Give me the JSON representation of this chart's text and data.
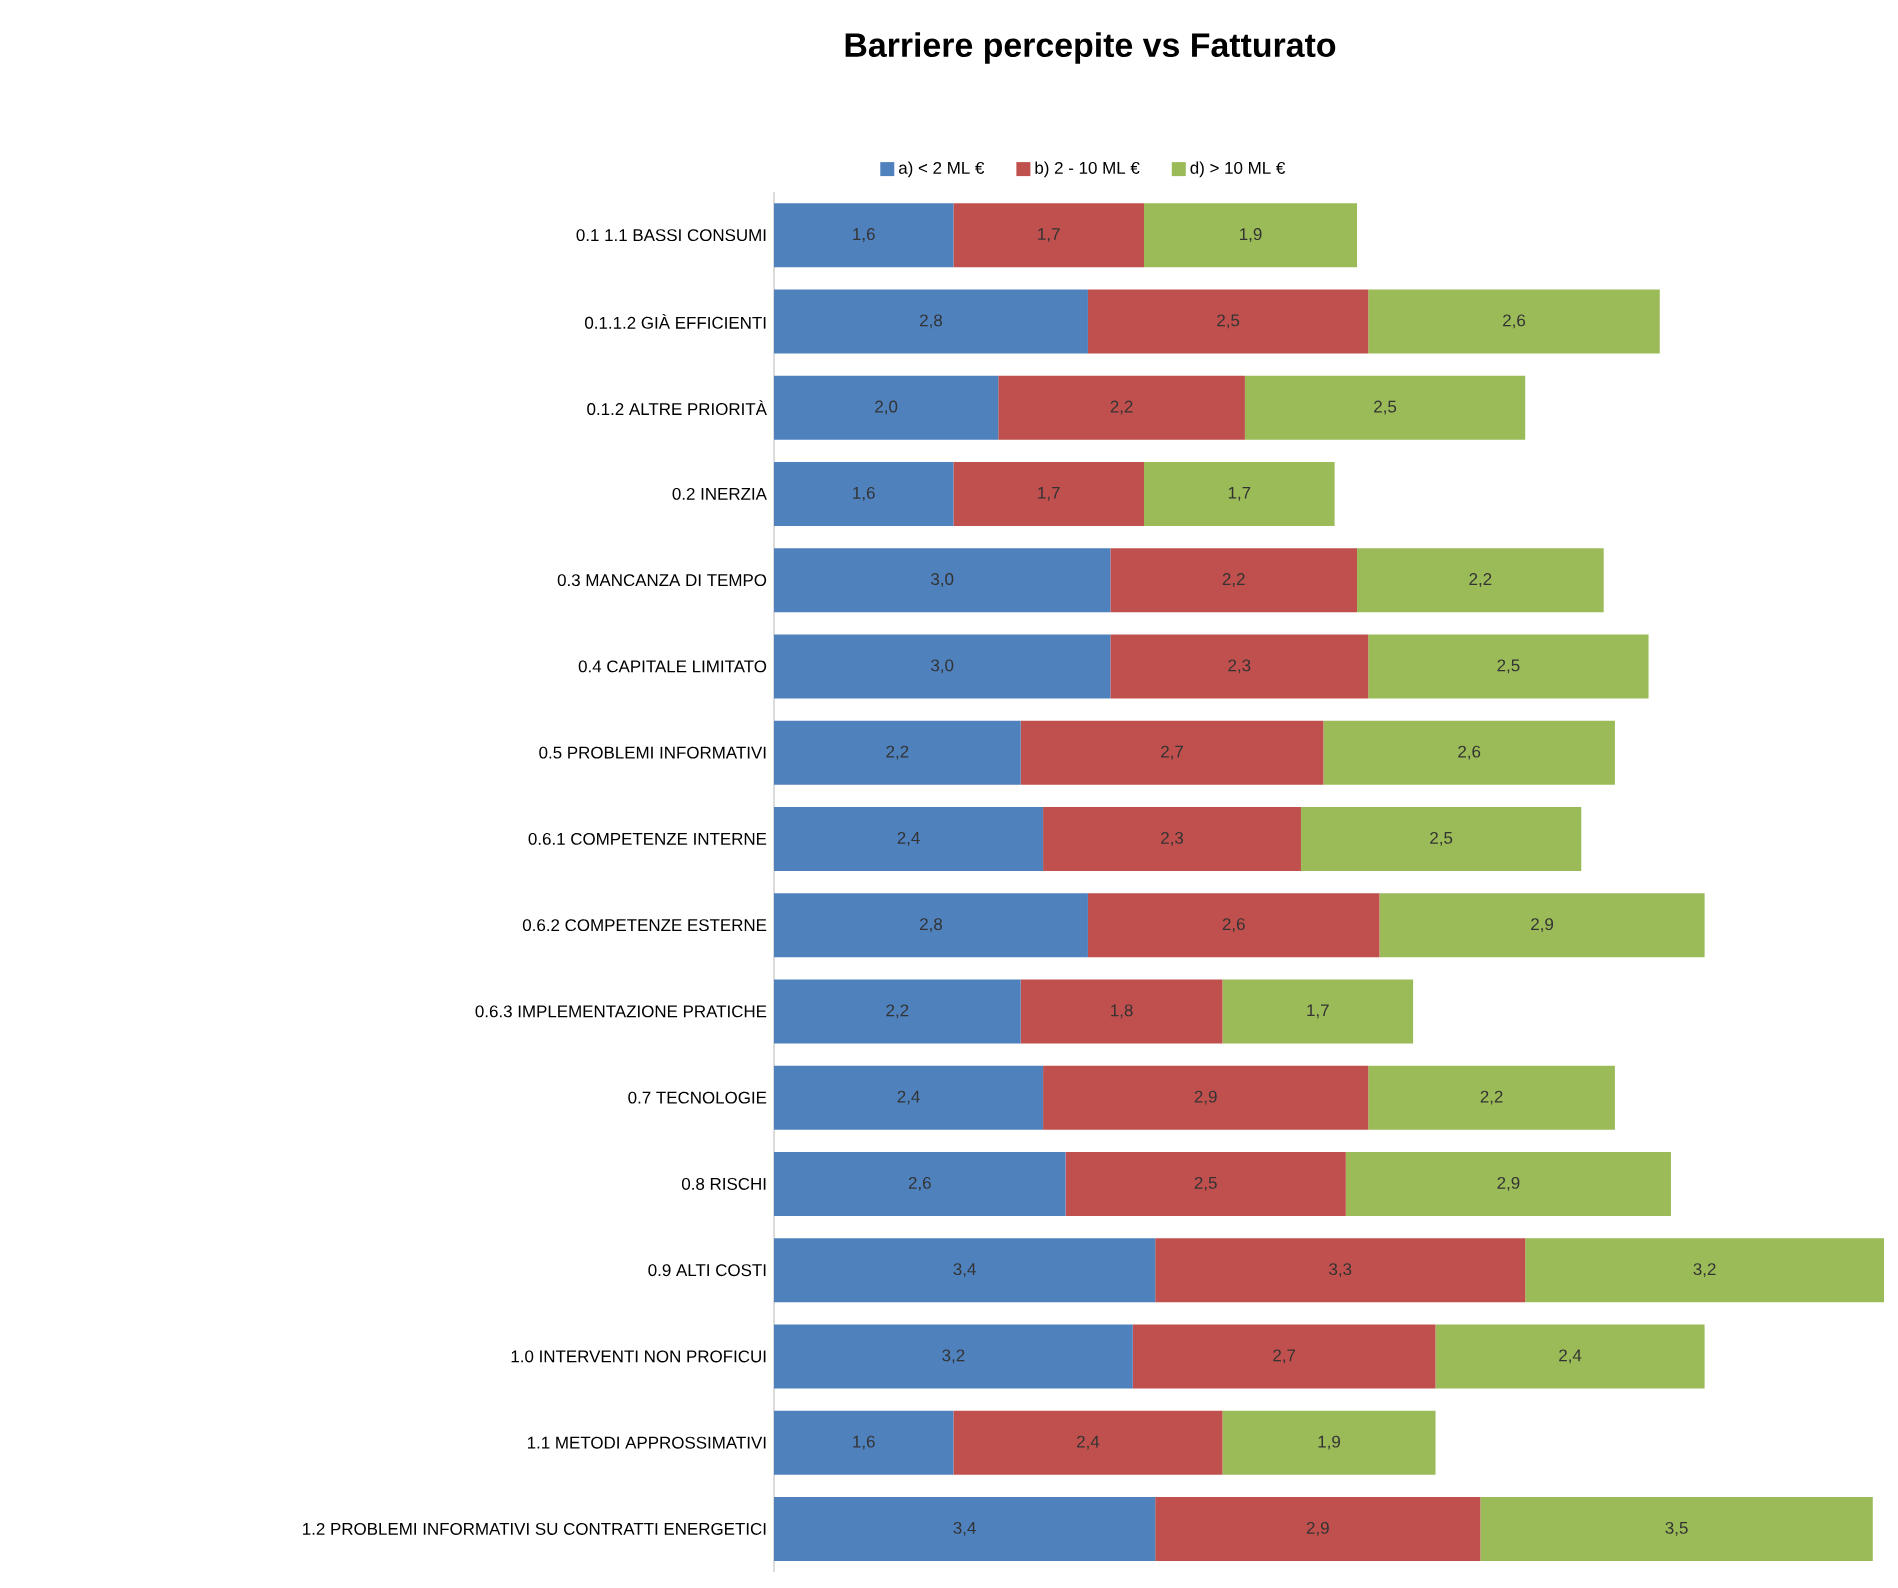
{
  "chart_data": {
    "type": "bar",
    "orientation": "horizontal",
    "stacked": true,
    "title": "Barriere percepite vs Fatturato",
    "legend": "top",
    "categories": [
      "0.1 1.1 BASSI CONSUMI",
      "0.1.1.2 GIÀ EFFICIENTI",
      "0.1.2 ALTRE PRIORITÀ",
      "0.2 INERZIA",
      "0.3 MANCANZA DI TEMPO",
      "0.4 CAPITALE LIMITATO",
      "0.5 PROBLEMI INFORMATIVI",
      "0.6.1 COMPETENZE INTERNE",
      "0.6.2 COMPETENZE ESTERNE",
      "0.6.3 IMPLEMENTAZIONE PRATICHE",
      "0.7 TECNOLOGIE",
      "0.8 RISCHI",
      "0.9 ALTI COSTI",
      "1.0 INTERVENTI NON PROFICUI",
      "1.1 METODI APPROSSIMATIVI",
      "1.2 PROBLEMI INFORMATIVI SU CONTRATTI ENERGETICI"
    ],
    "series": [
      {
        "name": "a) < 2 ML €",
        "color": "#4f81bd",
        "values": [
          1.6,
          2.8,
          2.0,
          1.6,
          3.0,
          3.0,
          2.2,
          2.4,
          2.8,
          2.2,
          2.4,
          2.6,
          3.4,
          3.2,
          1.6,
          3.4
        ],
        "value_labels": [
          "1,6",
          "2,8",
          "2,0",
          "1,6",
          "3,0",
          "3,0",
          "2,2",
          "2,4",
          "2,8",
          "2,2",
          "2,4",
          "2,6",
          "3,4",
          "3,2",
          "1,6",
          "3,4"
        ]
      },
      {
        "name": "b) 2 - 10 ML €",
        "color": "#c0504d",
        "values": [
          1.7,
          2.5,
          2.2,
          1.7,
          2.2,
          2.3,
          2.7,
          2.3,
          2.6,
          1.8,
          2.9,
          2.5,
          3.3,
          2.7,
          2.4,
          2.9
        ],
        "value_labels": [
          "1,7",
          "2,5",
          "2,2",
          "1,7",
          "2,2",
          "2,3",
          "2,7",
          "2,3",
          "2,6",
          "1,8",
          "2,9",
          "2,5",
          "3,3",
          "2,7",
          "2,4",
          "2,9"
        ]
      },
      {
        "name": "d) > 10 ML €",
        "color": "#9bbb59",
        "values": [
          1.9,
          2.6,
          2.5,
          1.7,
          2.2,
          2.5,
          2.6,
          2.5,
          2.9,
          1.7,
          2.2,
          2.9,
          3.2,
          2.4,
          1.9,
          3.5
        ],
        "value_labels": [
          "1,9",
          "2,6",
          "2,5",
          "1,7",
          "2,2",
          "2,5",
          "2,6",
          "2,5",
          "2,9",
          "1,7",
          "2,2",
          "2,9",
          "3,2",
          "2,4",
          "1,9",
          "3,5"
        ]
      }
    ]
  }
}
